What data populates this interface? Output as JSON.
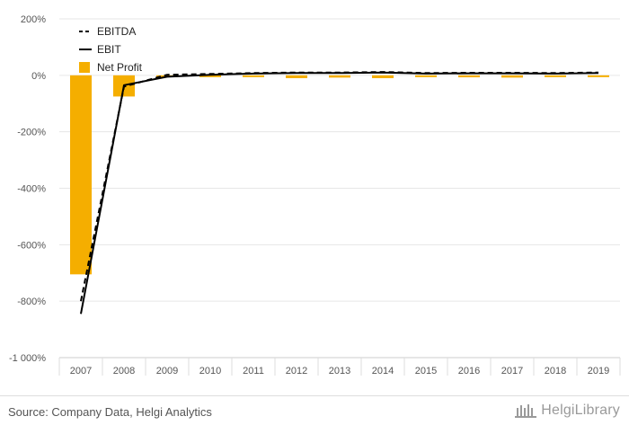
{
  "chart_data": {
    "type": "bar+line",
    "categories": [
      "2007",
      "2008",
      "2009",
      "2010",
      "2011",
      "2012",
      "2013",
      "2014",
      "2015",
      "2016",
      "2017",
      "2018",
      "2019"
    ],
    "series": [
      {
        "name": "EBITDA",
        "type": "line",
        "style": "dashed",
        "color": "#000000",
        "values": [
          -800,
          -40,
          2,
          5,
          8,
          10,
          10,
          12,
          8,
          9,
          9,
          8,
          10
        ]
      },
      {
        "name": "EBIT",
        "type": "line",
        "style": "solid",
        "color": "#000000",
        "values": [
          -845,
          -35,
          -5,
          2,
          6,
          8,
          8,
          10,
          6,
          7,
          7,
          6,
          8
        ]
      },
      {
        "name": "Net Profit",
        "type": "bar",
        "color": "#f5ae00",
        "values": [
          -705,
          -75,
          -6,
          1,
          -5,
          -10,
          -8,
          -10,
          -3,
          -7,
          -8,
          -6,
          -4
        ]
      }
    ],
    "y_ticks": [
      200,
      0,
      -200,
      -400,
      -600,
      -800,
      -1000
    ],
    "y_tick_labels": [
      "200%",
      "0%",
      "-200%",
      "-400%",
      "-600%",
      "-800%",
      "-1 000%"
    ],
    "ylim": [
      -1000,
      200
    ],
    "title": "",
    "xlabel": "",
    "ylabel": "",
    "legend_position": "top-left",
    "grid": true
  },
  "footer": {
    "source": "Source: Company Data, Helgi Analytics",
    "brand": "HelgiLibrary"
  }
}
